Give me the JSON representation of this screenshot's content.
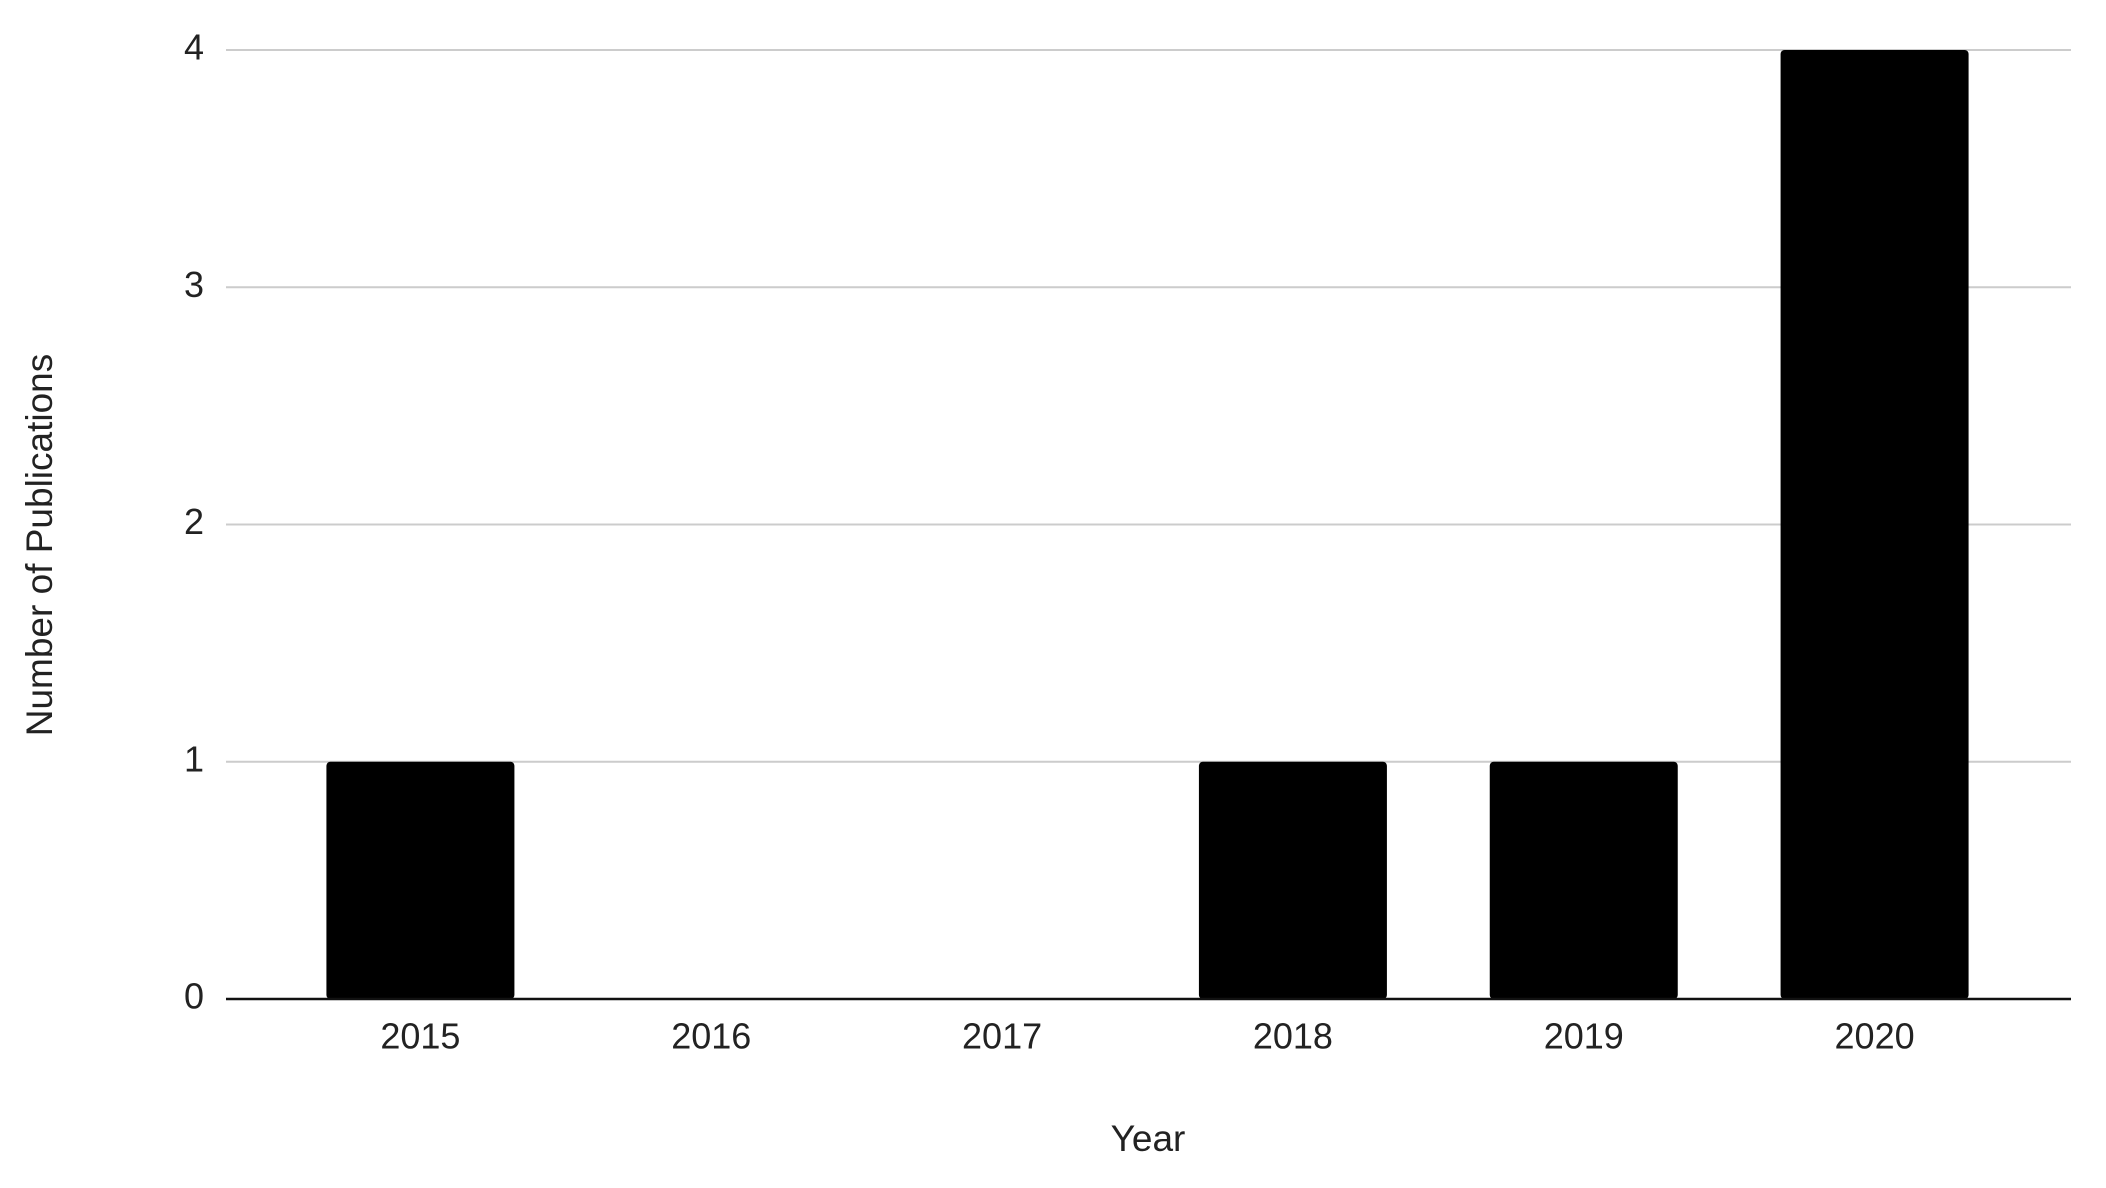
{
  "chart_data": {
    "type": "bar",
    "x_label": "Year",
    "y_label": "Number of Publications",
    "categories": [
      "2015",
      "2016",
      "2017",
      "2018",
      "2019",
      "2020"
    ],
    "values": [
      1,
      0,
      0,
      1,
      1,
      4
    ],
    "color": "#000000",
    "ylim": [
      0,
      4
    ],
    "yticks": [
      0,
      1,
      2,
      3,
      4
    ],
    "grid": true
  }
}
